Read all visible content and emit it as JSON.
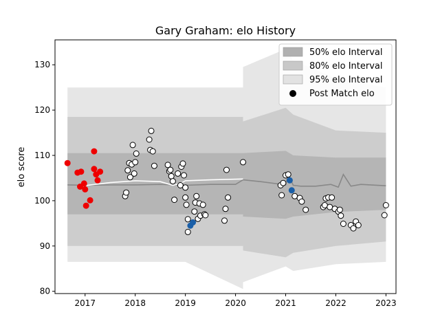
{
  "chart_data": {
    "type": "scatter",
    "title": "Gary Graham: elo History",
    "xlabel": "",
    "ylabel": "elo score",
    "xlim": [
      2016.4,
      2023.2
    ],
    "ylim": [
      79.5,
      135.5
    ],
    "x_ticks": [
      2017,
      2018,
      2019,
      2020,
      2021,
      2022,
      2023
    ],
    "x_tick_labels": [
      "2017",
      "2018",
      "2019",
      "2020",
      "2021",
      "2022",
      "2023"
    ],
    "y_ticks": [
      80,
      90,
      100,
      110,
      120,
      130
    ],
    "y_tick_labels": [
      "80",
      "90",
      "100",
      "110",
      "120",
      "130"
    ],
    "grid": false,
    "legend": {
      "position": "top-right",
      "entries": [
        {
          "label": "50% elo Interval",
          "kind": "band",
          "color": "#b0b0b0"
        },
        {
          "label": "80% elo Interval",
          "kind": "band",
          "color": "#c8c8c8"
        },
        {
          "label": "95% elo Interval",
          "kind": "band",
          "color": "#e2e2e2"
        },
        {
          "label": "Post Match elo",
          "kind": "marker",
          "color": "#000000"
        }
      ]
    },
    "bands": [
      {
        "name": "95% elo Interval",
        "color": "#e2e2e2",
        "segments": [
          {
            "x": [
              2016.65,
              2018.0,
              2019.0,
              2020.15
            ],
            "upper": [
              125,
              125,
              125,
              125
            ],
            "lower": [
              86.5,
              86.5,
              86.5,
              80.5
            ]
          },
          {
            "x": [
              2020.15,
              2021.0,
              2021.15,
              2022.0,
              2023.0
            ],
            "upper": [
              129.5,
              133.5,
              131.0,
              127.0,
              125.0
            ],
            "lower": [
              82.0,
              85.5,
              84.5,
              86.0,
              86.5
            ]
          }
        ]
      },
      {
        "name": "80% elo Interval",
        "color": "#c8c8c8",
        "segments": [
          {
            "x": [
              2016.65,
              2018.0,
              2019.0,
              2020.15
            ],
            "upper": [
              118.5,
              118.5,
              118.5,
              118.5
            ],
            "lower": [
              90.0,
              90.0,
              90.0,
              90.0
            ]
          },
          {
            "x": [
              2020.15,
              2021.0,
              2021.15,
              2022.0,
              2023.0
            ],
            "upper": [
              117.5,
              120.5,
              119.0,
              115.5,
              115.0
            ],
            "lower": [
              89.0,
              87.5,
              88.5,
              90.0,
              91.0
            ]
          }
        ]
      },
      {
        "name": "50% elo Interval",
        "color": "#b0b0b0",
        "segments": [
          {
            "x": [
              2016.65,
              2018.0,
              2019.0,
              2020.15
            ],
            "upper": [
              110.5,
              110.5,
              110.5,
              110.5
            ],
            "lower": [
              97.0,
              97.0,
              97.0,
              97.0
            ]
          },
          {
            "x": [
              2020.15,
              2021.0,
              2021.15,
              2022.0,
              2023.0
            ],
            "upper": [
              110.5,
              111.0,
              110.0,
              109.5,
              109.5
            ],
            "lower": [
              96.5,
              96.0,
              96.5,
              97.5,
              98.0
            ]
          }
        ]
      }
    ],
    "lines": [
      {
        "name": "mean",
        "color": "#888888",
        "x": [
          2016.65,
          2017.0,
          2017.5,
          2018.0,
          2018.5,
          2019.0,
          2019.5,
          2020.0,
          2020.15,
          2020.5,
          2021.0,
          2021.05,
          2021.15,
          2021.3,
          2021.6,
          2021.9,
          2022.05,
          2022.15,
          2022.3,
          2022.5,
          2023.0
        ],
        "y": [
          103.5,
          103.4,
          103.5,
          103.5,
          103.6,
          103.4,
          103.6,
          103.6,
          104.6,
          104.2,
          103.5,
          105.8,
          103.4,
          103.2,
          103.2,
          103.6,
          103.0,
          105.8,
          103.2,
          103.6,
          103.3
        ]
      },
      {
        "name": "smoothed",
        "color": "#ffffff",
        "x": [
          2016.9,
          2017.2,
          2017.5,
          2018.0,
          2018.5,
          2018.75,
          2018.9,
          2019.0,
          2019.5,
          2020.15
        ],
        "y": [
          103.2,
          103.6,
          104.0,
          104.4,
          104.2,
          103.4,
          103.8,
          104.4,
          104.6,
          104.8
        ]
      }
    ],
    "points": [
      {
        "x": 2016.65,
        "y": 108.3,
        "color": "#ee0000"
      },
      {
        "x": 2016.85,
        "y": 106.2,
        "color": "#ee0000"
      },
      {
        "x": 2016.9,
        "y": 103.1,
        "color": "#ee0000"
      },
      {
        "x": 2016.92,
        "y": 106.4,
        "color": "#ee0000"
      },
      {
        "x": 2016.98,
        "y": 103.8,
        "color": "#ee0000"
      },
      {
        "x": 2017.0,
        "y": 102.5,
        "color": "#ee0000"
      },
      {
        "x": 2017.02,
        "y": 98.9,
        "color": "#ee0000"
      },
      {
        "x": 2017.1,
        "y": 100.1,
        "color": "#ee0000"
      },
      {
        "x": 2017.18,
        "y": 110.9,
        "color": "#ee0000"
      },
      {
        "x": 2017.18,
        "y": 107.0,
        "color": "#ee0000"
      },
      {
        "x": 2017.22,
        "y": 105.8,
        "color": "#ee0000"
      },
      {
        "x": 2017.25,
        "y": 104.5,
        "color": "#ee0000"
      },
      {
        "x": 2017.3,
        "y": 106.4,
        "color": "#ee0000"
      },
      {
        "x": 2017.8,
        "y": 101.0,
        "color": "#ffffff"
      },
      {
        "x": 2017.82,
        "y": 101.8,
        "color": "#ffffff"
      },
      {
        "x": 2017.85,
        "y": 106.7,
        "color": "#ffffff"
      },
      {
        "x": 2017.88,
        "y": 108.3,
        "color": "#ffffff"
      },
      {
        "x": 2017.9,
        "y": 105.2,
        "color": "#ffffff"
      },
      {
        "x": 2017.93,
        "y": 108.0,
        "color": "#ffffff"
      },
      {
        "x": 2017.95,
        "y": 112.3,
        "color": "#ffffff"
      },
      {
        "x": 2017.98,
        "y": 106.0,
        "color": "#ffffff"
      },
      {
        "x": 2018.0,
        "y": 108.5,
        "color": "#ffffff"
      },
      {
        "x": 2018.02,
        "y": 110.4,
        "color": "#ffffff"
      },
      {
        "x": 2018.28,
        "y": 113.5,
        "color": "#ffffff"
      },
      {
        "x": 2018.3,
        "y": 111.2,
        "color": "#ffffff"
      },
      {
        "x": 2018.32,
        "y": 115.4,
        "color": "#ffffff"
      },
      {
        "x": 2018.35,
        "y": 110.9,
        "color": "#ffffff"
      },
      {
        "x": 2018.38,
        "y": 107.7,
        "color": "#ffffff"
      },
      {
        "x": 2018.65,
        "y": 107.9,
        "color": "#ffffff"
      },
      {
        "x": 2018.68,
        "y": 106.5,
        "color": "#ffffff"
      },
      {
        "x": 2018.7,
        "y": 106.8,
        "color": "#ffffff"
      },
      {
        "x": 2018.72,
        "y": 105.4,
        "color": "#ffffff"
      },
      {
        "x": 2018.75,
        "y": 104.3,
        "color": "#ffffff"
      },
      {
        "x": 2018.78,
        "y": 100.2,
        "color": "#ffffff"
      },
      {
        "x": 2018.85,
        "y": 106.0,
        "color": "#ffffff"
      },
      {
        "x": 2018.9,
        "y": 103.4,
        "color": "#ffffff"
      },
      {
        "x": 2018.92,
        "y": 107.5,
        "color": "#ffffff"
      },
      {
        "x": 2018.95,
        "y": 108.2,
        "color": "#ffffff"
      },
      {
        "x": 2018.97,
        "y": 105.6,
        "color": "#ffffff"
      },
      {
        "x": 2019.0,
        "y": 102.9,
        "color": "#ffffff"
      },
      {
        "x": 2019.0,
        "y": 100.7,
        "color": "#ffffff"
      },
      {
        "x": 2019.02,
        "y": 99.1,
        "color": "#ffffff"
      },
      {
        "x": 2019.05,
        "y": 95.9,
        "color": "#ffffff"
      },
      {
        "x": 2019.05,
        "y": 93.1,
        "color": "#ffffff"
      },
      {
        "x": 2019.1,
        "y": 94.5,
        "color": "#1a5fa8"
      },
      {
        "x": 2019.15,
        "y": 95.2,
        "color": "#1a5fa8"
      },
      {
        "x": 2019.18,
        "y": 97.6,
        "color": "#ffffff"
      },
      {
        "x": 2019.2,
        "y": 99.6,
        "color": "#ffffff"
      },
      {
        "x": 2019.22,
        "y": 101.0,
        "color": "#ffffff"
      },
      {
        "x": 2019.25,
        "y": 96.0,
        "color": "#ffffff"
      },
      {
        "x": 2019.28,
        "y": 99.4,
        "color": "#ffffff"
      },
      {
        "x": 2019.3,
        "y": 96.7,
        "color": "#ffffff"
      },
      {
        "x": 2019.35,
        "y": 99.1,
        "color": "#ffffff"
      },
      {
        "x": 2019.38,
        "y": 97.0,
        "color": "#ffffff"
      },
      {
        "x": 2019.4,
        "y": 96.8,
        "color": "#ffffff"
      },
      {
        "x": 2019.78,
        "y": 95.6,
        "color": "#ffffff"
      },
      {
        "x": 2019.8,
        "y": 98.2,
        "color": "#ffffff"
      },
      {
        "x": 2019.82,
        "y": 106.8,
        "color": "#ffffff"
      },
      {
        "x": 2019.85,
        "y": 100.7,
        "color": "#ffffff"
      },
      {
        "x": 2020.15,
        "y": 108.5,
        "color": "#ffffff"
      },
      {
        "x": 2020.9,
        "y": 103.4,
        "color": "#ffffff"
      },
      {
        "x": 2020.92,
        "y": 101.2,
        "color": "#ffffff"
      },
      {
        "x": 2020.95,
        "y": 103.9,
        "color": "#ffffff"
      },
      {
        "x": 2021.0,
        "y": 105.6,
        "color": "#ffffff"
      },
      {
        "x": 2021.05,
        "y": 105.8,
        "color": "#ffffff"
      },
      {
        "x": 2021.08,
        "y": 104.5,
        "color": "#1a5fa8"
      },
      {
        "x": 2021.12,
        "y": 102.3,
        "color": "#1a5fa8"
      },
      {
        "x": 2021.18,
        "y": 101.0,
        "color": "#ffffff"
      },
      {
        "x": 2021.28,
        "y": 100.6,
        "color": "#ffffff"
      },
      {
        "x": 2021.32,
        "y": 99.8,
        "color": "#ffffff"
      },
      {
        "x": 2021.4,
        "y": 98.0,
        "color": "#ffffff"
      },
      {
        "x": 2021.75,
        "y": 98.6,
        "color": "#ffffff"
      },
      {
        "x": 2021.78,
        "y": 99.0,
        "color": "#ffffff"
      },
      {
        "x": 2021.8,
        "y": 100.5,
        "color": "#ffffff"
      },
      {
        "x": 2021.85,
        "y": 100.7,
        "color": "#ffffff"
      },
      {
        "x": 2021.88,
        "y": 98.6,
        "color": "#ffffff"
      },
      {
        "x": 2021.92,
        "y": 100.7,
        "color": "#ffffff"
      },
      {
        "x": 2021.98,
        "y": 98.2,
        "color": "#ffffff"
      },
      {
        "x": 2022.05,
        "y": 97.6,
        "color": "#ffffff"
      },
      {
        "x": 2022.08,
        "y": 98.0,
        "color": "#ffffff"
      },
      {
        "x": 2022.1,
        "y": 96.7,
        "color": "#ffffff"
      },
      {
        "x": 2022.15,
        "y": 94.9,
        "color": "#ffffff"
      },
      {
        "x": 2022.3,
        "y": 94.6,
        "color": "#ffffff"
      },
      {
        "x": 2022.35,
        "y": 93.9,
        "color": "#ffffff"
      },
      {
        "x": 2022.4,
        "y": 95.4,
        "color": "#ffffff"
      },
      {
        "x": 2022.45,
        "y": 94.6,
        "color": "#ffffff"
      },
      {
        "x": 2022.97,
        "y": 96.8,
        "color": "#ffffff"
      },
      {
        "x": 2023.0,
        "y": 99.0,
        "color": "#ffffff"
      }
    ]
  }
}
